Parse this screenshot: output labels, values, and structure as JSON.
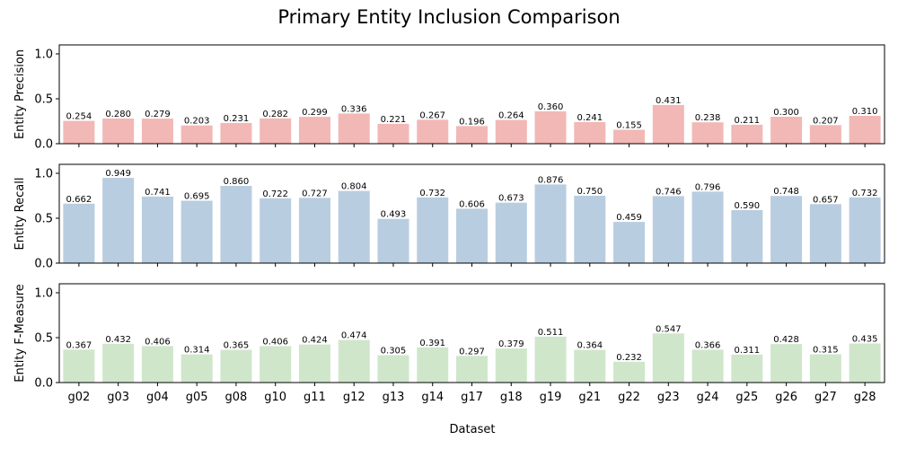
{
  "chart_data": {
    "type": "bar",
    "title": "Primary Entity Inclusion Comparison",
    "xlabel": "Dataset",
    "categories": [
      "g02",
      "g03",
      "g04",
      "g05",
      "g08",
      "g10",
      "g11",
      "g12",
      "g13",
      "g14",
      "g17",
      "g18",
      "g19",
      "g21",
      "g22",
      "g23",
      "g24",
      "g25",
      "g26",
      "g27",
      "g28"
    ],
    "ylim": [
      0,
      1.1
    ],
    "yticks": [
      "0.0",
      "0.5",
      "1.0"
    ],
    "subplots": [
      {
        "ylabel": "Entity Precision",
        "color": "#f2b8b6",
        "values": [
          0.254,
          0.28,
          0.279,
          0.203,
          0.231,
          0.282,
          0.299,
          0.336,
          0.221,
          0.267,
          0.196,
          0.264,
          0.36,
          0.241,
          0.155,
          0.431,
          0.238,
          0.211,
          0.3,
          0.207,
          0.31
        ],
        "labels": [
          "0.254",
          "0.280",
          "0.279",
          "0.203",
          "0.231",
          "0.282",
          "0.299",
          "0.336",
          "0.221",
          "0.267",
          "0.196",
          "0.264",
          "0.360",
          "0.241",
          "0.155",
          "0.431",
          "0.238",
          "0.211",
          "0.300",
          "0.207",
          "0.310"
        ]
      },
      {
        "ylabel": "Entity Recall",
        "color": "#b9cde0",
        "values": [
          0.662,
          0.949,
          0.741,
          0.695,
          0.86,
          0.722,
          0.727,
          0.804,
          0.493,
          0.732,
          0.606,
          0.673,
          0.876,
          0.75,
          0.459,
          0.746,
          0.796,
          0.59,
          0.748,
          0.657,
          0.732
        ],
        "labels": [
          "0.662",
          "0.949",
          "0.741",
          "0.695",
          "0.860",
          "0.722",
          "0.727",
          "0.804",
          "0.493",
          "0.732",
          "0.606",
          "0.673",
          "0.876",
          "0.750",
          "0.459",
          "0.746",
          "0.796",
          "0.590",
          "0.748",
          "0.657",
          "0.732"
        ]
      },
      {
        "ylabel": "Entity F-Measure",
        "color": "#cfe6cb",
        "values": [
          0.367,
          0.432,
          0.406,
          0.314,
          0.365,
          0.406,
          0.424,
          0.474,
          0.305,
          0.391,
          0.297,
          0.379,
          0.511,
          0.364,
          0.232,
          0.547,
          0.366,
          0.311,
          0.428,
          0.315,
          0.435
        ],
        "labels": [
          "0.367",
          "0.432",
          "0.406",
          "0.314",
          "0.365",
          "0.406",
          "0.424",
          "0.474",
          "0.305",
          "0.391",
          "0.297",
          "0.379",
          "0.511",
          "0.364",
          "0.232",
          "0.547",
          "0.366",
          "0.311",
          "0.428",
          "0.315",
          "0.435"
        ]
      }
    ]
  }
}
